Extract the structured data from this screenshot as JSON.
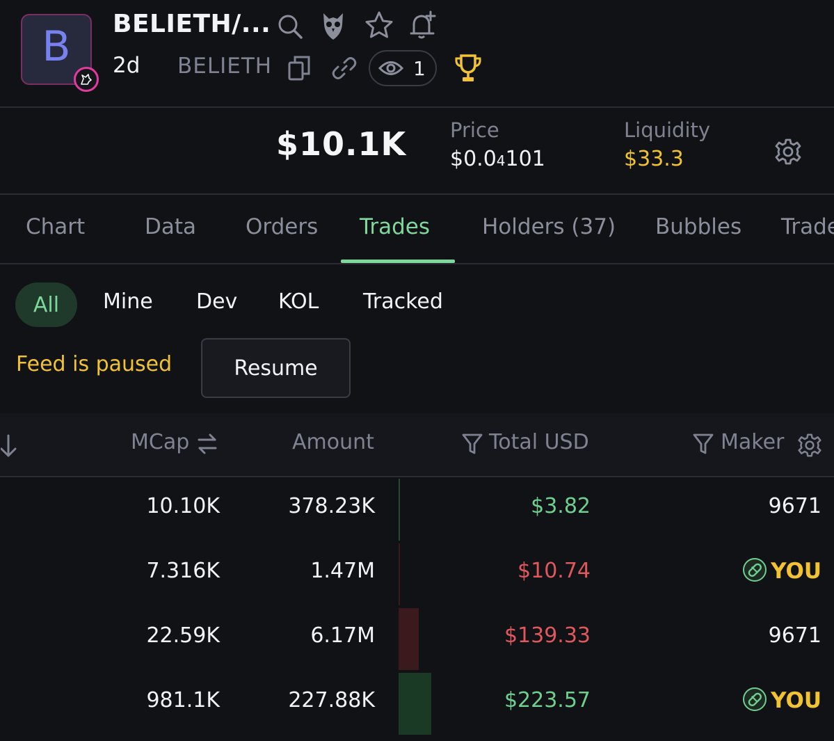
{
  "header": {
    "avatar_letter": "B",
    "title": "BELIETH/...",
    "age": "2d",
    "symbol": "BELIETH",
    "watchers": "1",
    "icons": [
      "search-icon",
      "owl-icon",
      "star-icon",
      "bell-add-icon",
      "copy-icon",
      "link-icon",
      "eye-icon",
      "trophy-icon",
      "gear-icon"
    ]
  },
  "stats": {
    "mcap": "$10.1K",
    "price_label": "Price",
    "price_value": "$0.0",
    "price_subscript": "4",
    "price_digits": "101",
    "liquidity_label": "Liquidity",
    "liquidity_value": "$33.3"
  },
  "tabs": [
    {
      "label": "Chart"
    },
    {
      "label": "Data"
    },
    {
      "label": "Orders"
    },
    {
      "label": "Trades",
      "active": true
    },
    {
      "label": "Holders",
      "count": "(37)"
    },
    {
      "label": "Bubbles"
    },
    {
      "label": "Trade"
    }
  ],
  "filters": {
    "items": [
      "All",
      "Mine",
      "Dev",
      "KOL",
      "Tracked"
    ],
    "selected": "All"
  },
  "feed": {
    "status": "Feed is paused",
    "resume_label": "Resume"
  },
  "table": {
    "headers": {
      "mcap": "MCap",
      "amount": "Amount",
      "total_usd": "Total USD",
      "maker": "Maker"
    },
    "rows": [
      {
        "mcap": "10.10K",
        "amount": "378.23K",
        "total": "$3.82",
        "side": "buy",
        "maker": "9671",
        "is_you": false,
        "bar_fraction": 0.01
      },
      {
        "mcap": "7.316K",
        "amount": "1.47M",
        "total": "$10.74",
        "side": "sell",
        "maker": "YOU",
        "is_you": true,
        "bar_fraction": 0.05
      },
      {
        "mcap": "22.59K",
        "amount": "6.17M",
        "total": "$139.33",
        "side": "sell",
        "maker": "9671",
        "is_you": false,
        "bar_fraction": 0.62
      },
      {
        "mcap": "981.1K",
        "amount": "227.88K",
        "total": "$223.57",
        "side": "buy",
        "maker": "YOU",
        "is_you": true,
        "bar_fraction": 1.0
      }
    ]
  },
  "colors": {
    "buy": "#6fcf8f",
    "sell": "#e0575c",
    "accent": "#7fd89b",
    "warning": "#f1c232",
    "muted": "#7f8391"
  }
}
